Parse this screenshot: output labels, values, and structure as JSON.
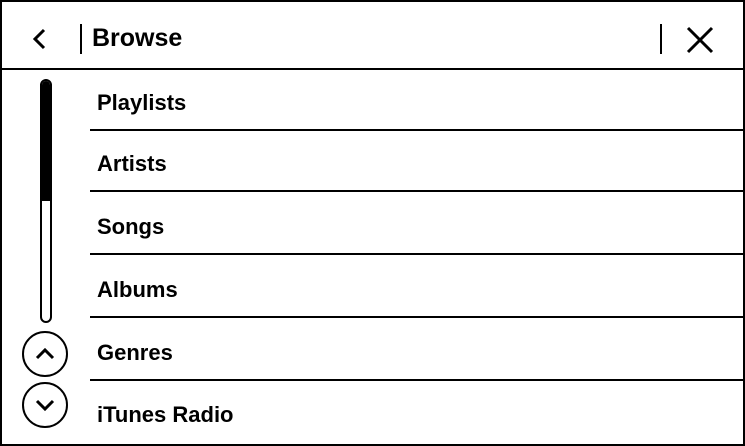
{
  "header": {
    "title": "Browse",
    "back_icon": "chevron-left-icon",
    "close_icon": "close-icon"
  },
  "list": {
    "items": [
      {
        "label": "Playlists"
      },
      {
        "label": "Artists"
      },
      {
        "label": "Songs"
      },
      {
        "label": "Albums"
      },
      {
        "label": "Genres"
      },
      {
        "label": "iTunes Radio"
      }
    ]
  },
  "scroll": {
    "thumb_fraction": 0.5,
    "position_fraction": 0,
    "up_icon": "chevron-up-icon",
    "down_icon": "chevron-down-icon"
  }
}
